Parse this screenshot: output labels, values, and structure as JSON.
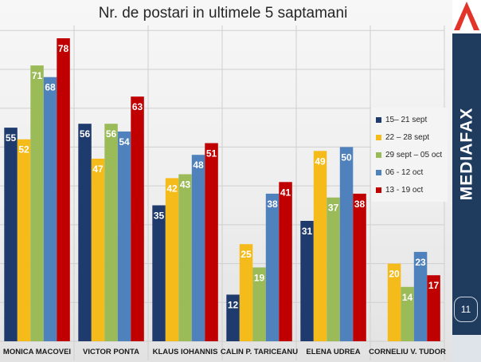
{
  "chart_data": {
    "type": "bar",
    "title": "Nr. de postari in ultimele 5 saptamani",
    "categories": [
      "MONICA MACOVEI",
      "VICTOR PONTA",
      "KLAUS IOHANNIS",
      "CALIN P. TARICEANU",
      "ELENA UDREA",
      "CORNELIU V. TUDOR"
    ],
    "series": [
      {
        "name": "15– 21 sept",
        "color": "#1f3a6d",
        "values": [
          55,
          56,
          35,
          12,
          31,
          null
        ]
      },
      {
        "name": "22 – 28 sept",
        "color": "#f5bb1b",
        "values": [
          52,
          47,
          42,
          25,
          49,
          20
        ]
      },
      {
        "name": "29 sept – 05 oct",
        "color": "#9bbb59",
        "values": [
          71,
          56,
          43,
          19,
          37,
          14
        ]
      },
      {
        "name": "06 - 12 oct",
        "color": "#4f81bd",
        "values": [
          68,
          54,
          48,
          38,
          50,
          23
        ]
      },
      {
        "name": "13 - 19 oct",
        "color": "#c00000",
        "values": [
          78,
          63,
          51,
          41,
          38,
          17
        ]
      }
    ],
    "ylim": [
      0,
      90
    ],
    "grid": true,
    "legend_position": "right"
  },
  "brand": {
    "name": "MEDIAFAX",
    "page_number": "11",
    "panel_color": "#1f3b5e",
    "logo_color": "#e3342a"
  }
}
